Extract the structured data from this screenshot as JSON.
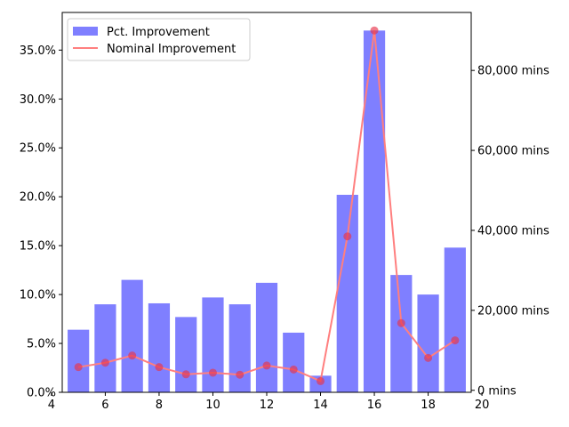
{
  "chart_data": {
    "type": "bar",
    "x": [
      5,
      6,
      7,
      8,
      9,
      10,
      11,
      12,
      13,
      14,
      15,
      16,
      17,
      18,
      19
    ],
    "series": [
      {
        "name": "Pct. Improvement",
        "type": "bar",
        "axis": "left",
        "color": "#7f7fff",
        "values": [
          6.4,
          9.0,
          11.5,
          9.1,
          7.7,
          9.7,
          9.0,
          11.2,
          6.1,
          1.7,
          20.2,
          37.0,
          12.0,
          10.0,
          14.8
        ]
      },
      {
        "name": "Nominal Improvement",
        "type": "line",
        "axis": "right",
        "color": "#ff7f7f",
        "marker_color": "#e8344b",
        "values": [
          5800,
          6900,
          8700,
          5800,
          4000,
          4400,
          3900,
          6200,
          5200,
          2300,
          38500,
          90000,
          16800,
          8100,
          12500
        ]
      }
    ],
    "x_axis": {
      "ticks": [
        4,
        6,
        8,
        10,
        12,
        14,
        16,
        18,
        20
      ],
      "range": [
        4.4,
        19.6
      ]
    },
    "y_left": {
      "range": [
        0,
        38.85
      ],
      "ticks": [
        0,
        5,
        10,
        15,
        20,
        25,
        30,
        35
      ],
      "tick_labels": [
        "0.0%",
        "5.0%",
        "10.0%",
        "15.0%",
        "20.0%",
        "25.0%",
        "30.0%",
        "35.0%"
      ]
    },
    "y_right": {
      "range": [
        -500,
        94500
      ],
      "ticks": [
        0,
        20000,
        40000,
        60000,
        80000
      ],
      "tick_labels": [
        "0 mins",
        "20,000 mins",
        "40,000 mins",
        "60,000 mins",
        "80,000 mins"
      ]
    },
    "grid": false,
    "legend": {
      "placement": "top-left",
      "entries": [
        "Pct. Improvement",
        "Nominal Improvement"
      ]
    }
  }
}
